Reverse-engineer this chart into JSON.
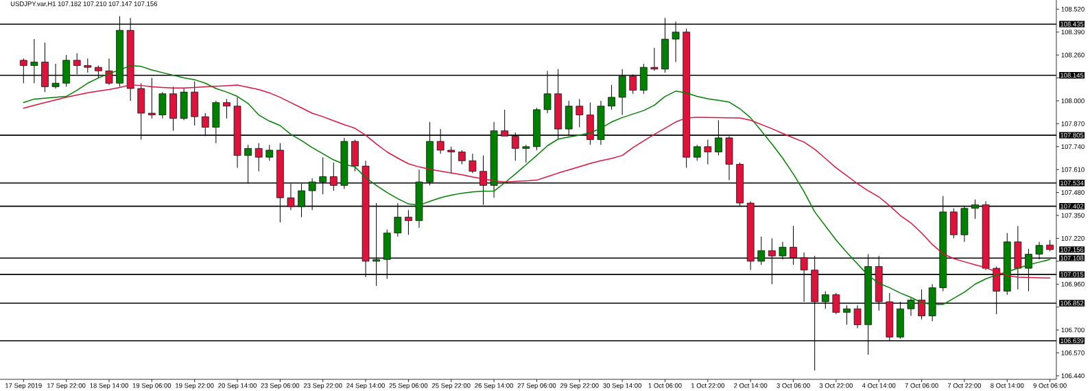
{
  "chart_data": {
    "type": "candlestick",
    "title": "USDJPY.var,H1 107.182 107.210 107.147 107.156",
    "categories": [
      "17 Sep 2019",
      null,
      null,
      null,
      "17 Sep 22:00",
      null,
      null,
      null,
      "18 Sep 14:00",
      null,
      null,
      null,
      "19 Sep 06:00",
      null,
      null,
      null,
      "19 Sep 22:00",
      null,
      null,
      null,
      "20 Sep 14:00",
      null,
      null,
      null,
      "23 Sep 06:00",
      null,
      null,
      null,
      "23 Sep 22:00",
      null,
      null,
      null,
      "24 Sep 14:00",
      null,
      null,
      null,
      "25 Sep 06:00",
      null,
      null,
      null,
      "25 Sep 22:00",
      null,
      null,
      null,
      "26 Sep 14:00",
      null,
      null,
      null,
      "27 Sep 06:00",
      null,
      null,
      null,
      "29 Sep 22:00",
      null,
      null,
      null,
      "30 Sep 14:00",
      null,
      null,
      null,
      "1 Oct 06:00",
      null,
      null,
      null,
      "1 Oct 22:00",
      null,
      null,
      null,
      "2 Oct 14:00",
      null,
      null,
      null,
      "3 Oct 06:00",
      null,
      null,
      null,
      "3 Oct 22:00",
      null,
      null,
      null,
      "4 Oct 14:00",
      null,
      null,
      null,
      "7 Oct 06:00",
      null,
      null,
      null,
      "7 Oct 22:00",
      null,
      null,
      null,
      "8 Oct 14:00",
      null,
      null,
      null,
      "9 Oct 06:00"
    ],
    "ohlc": [
      [
        108.23,
        108.24,
        108.1,
        108.2
      ],
      [
        108.2,
        108.35,
        108.1,
        108.22
      ],
      [
        108.22,
        108.33,
        108.05,
        108.08
      ],
      [
        108.08,
        108.21,
        108.07,
        108.1
      ],
      [
        108.1,
        108.26,
        108.08,
        108.23
      ],
      [
        108.23,
        108.27,
        108.15,
        108.2
      ],
      [
        108.2,
        108.24,
        108.16,
        108.19
      ],
      [
        108.19,
        108.2,
        108.13,
        108.17
      ],
      [
        108.17,
        108.24,
        108.09,
        108.1
      ],
      [
        108.1,
        108.48,
        108.08,
        108.4
      ],
      [
        108.4,
        108.47,
        108.0,
        108.07
      ],
      [
        108.07,
        108.1,
        107.78,
        107.93
      ],
      [
        107.93,
        108.13,
        107.9,
        107.92
      ],
      [
        107.92,
        108.05,
        107.9,
        108.04
      ],
      [
        108.04,
        108.08,
        107.83,
        107.9
      ],
      [
        107.9,
        108.07,
        107.89,
        108.05
      ],
      [
        108.05,
        108.11,
        107.86,
        107.91
      ],
      [
        107.91,
        107.93,
        107.8,
        107.85
      ],
      [
        107.85,
        108.0,
        107.76,
        107.99
      ],
      [
        107.99,
        108.01,
        107.9,
        107.97
      ],
      [
        107.97,
        108.02,
        107.62,
        107.69
      ],
      [
        107.69,
        107.75,
        107.53,
        107.73
      ],
      [
        107.73,
        107.76,
        107.6,
        107.68
      ],
      [
        107.68,
        107.75,
        107.66,
        107.72
      ],
      [
        107.72,
        107.76,
        107.31,
        107.45
      ],
      [
        107.45,
        107.53,
        107.38,
        107.4
      ],
      [
        107.4,
        107.53,
        107.34,
        107.49
      ],
      [
        107.49,
        107.56,
        107.38,
        107.54
      ],
      [
        107.54,
        107.68,
        107.47,
        107.57
      ],
      [
        107.57,
        107.65,
        107.49,
        107.52
      ],
      [
        107.52,
        107.79,
        107.5,
        107.77
      ],
      [
        107.77,
        107.78,
        107.6,
        107.63
      ],
      [
        107.63,
        107.66,
        107.0,
        107.09
      ],
      [
        107.09,
        107.42,
        106.95,
        107.1
      ],
      [
        107.1,
        107.27,
        106.99,
        107.25
      ],
      [
        107.25,
        107.42,
        107.23,
        107.34
      ],
      [
        107.34,
        107.38,
        107.24,
        107.32
      ],
      [
        107.32,
        107.61,
        107.28,
        107.54
      ],
      [
        107.54,
        107.88,
        107.52,
        107.77
      ],
      [
        107.77,
        107.84,
        107.7,
        107.72
      ],
      [
        107.72,
        107.74,
        107.59,
        107.71
      ],
      [
        107.71,
        107.72,
        107.64,
        107.66
      ],
      [
        107.66,
        107.7,
        107.59,
        107.6
      ],
      [
        107.6,
        107.69,
        107.41,
        107.52
      ],
      [
        107.52,
        107.88,
        107.45,
        107.83
      ],
      [
        107.83,
        107.95,
        107.8,
        107.8
      ],
      [
        107.8,
        107.82,
        107.66,
        107.73
      ],
      [
        107.73,
        107.75,
        107.65,
        107.74
      ],
      [
        107.74,
        107.96,
        107.72,
        107.95
      ],
      [
        107.95,
        108.17,
        107.93,
        108.04
      ],
      [
        108.04,
        108.18,
        107.78,
        107.84
      ],
      [
        107.84,
        108.0,
        107.8,
        107.97
      ],
      [
        107.97,
        108.01,
        107.85,
        107.92
      ],
      [
        107.92,
        107.99,
        107.75,
        107.78
      ],
      [
        107.78,
        108.0,
        107.75,
        107.97
      ],
      [
        107.97,
        108.09,
        107.95,
        108.02
      ],
      [
        108.02,
        108.18,
        107.92,
        108.14
      ],
      [
        108.14,
        108.15,
        108.04,
        108.06
      ],
      [
        108.06,
        108.21,
        108.04,
        108.19
      ],
      [
        108.19,
        108.3,
        108.17,
        108.18
      ],
      [
        108.18,
        108.47,
        108.16,
        108.35
      ],
      [
        108.35,
        108.45,
        108.22,
        108.39
      ],
      [
        108.39,
        108.41,
        107.62,
        107.68
      ],
      [
        107.68,
        107.75,
        107.66,
        107.74
      ],
      [
        107.74,
        107.78,
        107.64,
        107.71
      ],
      [
        107.71,
        107.89,
        107.69,
        107.79
      ],
      [
        107.79,
        107.8,
        107.55,
        107.64
      ],
      [
        107.64,
        107.65,
        107.4,
        107.42
      ],
      [
        107.42,
        107.43,
        107.04,
        107.09
      ],
      [
        107.09,
        107.23,
        107.07,
        107.15
      ],
      [
        107.15,
        107.22,
        106.96,
        107.12
      ],
      [
        107.12,
        107.2,
        107.1,
        107.17
      ],
      [
        107.17,
        107.29,
        107.07,
        107.11
      ],
      [
        107.11,
        107.14,
        106.86,
        107.04
      ],
      [
        107.04,
        107.12,
        106.47,
        106.86
      ],
      [
        106.86,
        106.92,
        106.82,
        106.9
      ],
      [
        106.9,
        106.91,
        106.79,
        106.8
      ],
      [
        106.8,
        106.84,
        106.73,
        106.82
      ],
      [
        106.82,
        106.84,
        106.71,
        106.73
      ],
      [
        106.73,
        107.13,
        106.56,
        107.06
      ],
      [
        107.06,
        107.12,
        106.81,
        106.86
      ],
      [
        106.86,
        106.91,
        106.64,
        106.66
      ],
      [
        106.66,
        106.86,
        106.65,
        106.82
      ],
      [
        106.82,
        106.88,
        106.78,
        106.87
      ],
      [
        106.87,
        106.93,
        106.76,
        106.78
      ],
      [
        106.78,
        106.96,
        106.75,
        106.94
      ],
      [
        106.94,
        107.46,
        106.92,
        107.37
      ],
      [
        107.37,
        107.39,
        107.22,
        107.24
      ],
      [
        107.24,
        107.4,
        107.2,
        107.39
      ],
      [
        107.39,
        107.44,
        107.33,
        107.41
      ],
      [
        107.41,
        107.43,
        107.04,
        107.05
      ],
      [
        107.05,
        107.06,
        106.79,
        106.92
      ],
      [
        106.92,
        107.25,
        106.9,
        107.2
      ],
      [
        107.2,
        107.29,
        106.93,
        107.05
      ],
      [
        107.05,
        107.16,
        106.92,
        107.13
      ],
      [
        107.13,
        107.2,
        107.1,
        107.18
      ],
      [
        107.182,
        107.21,
        107.147,
        107.156
      ]
    ],
    "colors": [
      "#dc143c",
      "#008000",
      "#dc143c",
      "#008000",
      "#008000",
      "#dc143c",
      "#dc143c",
      "#dc143c",
      "#dc143c",
      "#008000",
      "#dc143c",
      "#dc143c",
      "#dc143c",
      "#008000",
      "#dc143c",
      "#008000",
      "#dc143c",
      "#dc143c",
      "#008000",
      "#dc143c",
      "#dc143c",
      "#008000",
      "#dc143c",
      "#008000",
      "#dc143c",
      "#dc143c",
      "#008000",
      "#008000",
      "#008000",
      "#dc143c",
      "#008000",
      "#dc143c",
      "#dc143c",
      "#008000",
      "#008000",
      "#008000",
      "#dc143c",
      "#008000",
      "#008000",
      "#dc143c",
      "#dc143c",
      "#dc143c",
      "#dc143c",
      "#dc143c",
      "#008000",
      "#dc143c",
      "#dc143c",
      "#008000",
      "#008000",
      "#008000",
      "#dc143c",
      "#008000",
      "#dc143c",
      "#dc143c",
      "#008000",
      "#008000",
      "#008000",
      "#dc143c",
      "#008000",
      "#dc143c",
      "#008000",
      "#008000",
      "#dc143c",
      "#008000",
      "#dc143c",
      "#008000",
      "#dc143c",
      "#dc143c",
      "#dc143c",
      "#008000",
      "#dc143c",
      "#008000",
      "#dc143c",
      "#dc143c",
      "#dc143c",
      "#008000",
      "#dc143c",
      "#008000",
      "#dc143c",
      "#008000",
      "#dc143c",
      "#dc143c",
      "#008000",
      "#008000",
      "#dc143c",
      "#008000",
      "#008000",
      "#dc143c",
      "#008000",
      "#008000",
      "#dc143c",
      "#dc143c",
      "#008000",
      "#dc143c",
      "#008000",
      "#008000",
      "#dc143c"
    ],
    "series": [
      {
        "type": "line",
        "color": "#008000",
        "values": [
          107.99,
          108.01,
          108.015,
          108.02,
          108.025,
          108.06,
          108.1,
          108.13,
          108.155,
          108.175,
          108.2,
          108.195,
          108.175,
          108.16,
          108.145,
          108.13,
          108.12,
          108.1,
          108.07,
          108.05,
          108.025,
          107.985,
          107.92,
          107.885,
          107.86,
          107.81,
          107.775,
          107.735,
          107.7,
          107.665,
          107.64,
          107.625,
          107.565,
          107.52,
          107.48,
          107.445,
          107.415,
          107.408,
          107.43,
          107.45,
          107.465,
          107.476,
          107.483,
          107.487,
          107.488,
          107.535,
          107.585,
          107.638,
          107.69,
          107.745,
          107.783,
          107.795,
          107.805,
          107.818,
          107.845,
          107.88,
          107.905,
          107.925,
          107.945,
          107.975,
          108.025,
          108.055,
          108.045,
          108.025,
          108.012,
          108.003,
          107.993,
          107.955,
          107.904,
          107.83,
          107.755,
          107.675,
          107.585,
          107.485,
          107.37,
          107.29,
          107.21,
          107.14,
          107.075,
          107.01,
          106.965,
          106.94,
          106.91,
          106.885,
          106.855,
          106.845,
          106.845,
          106.88,
          106.915,
          106.96,
          106.99,
          107.012,
          107.03,
          107.05,
          107.07,
          107.085,
          107.1
        ]
      },
      {
        "type": "line",
        "color": "#dc143c",
        "values": [
          107.958,
          107.975,
          107.99,
          108.005,
          108.02,
          108.033,
          108.046,
          108.055,
          108.064,
          108.076,
          108.09,
          108.087,
          108.08,
          108.076,
          108.073,
          108.073,
          108.076,
          108.08,
          108.083,
          108.086,
          108.089,
          108.077,
          108.064,
          108.045,
          108.02,
          107.99,
          107.96,
          107.93,
          107.91,
          107.887,
          107.865,
          107.844,
          107.805,
          107.755,
          107.71,
          107.675,
          107.643,
          107.625,
          107.612,
          107.601,
          107.591,
          107.581,
          107.568,
          107.557,
          107.547,
          107.54,
          107.543,
          107.546,
          107.55,
          107.57,
          107.59,
          107.608,
          107.626,
          107.645,
          107.66,
          107.673,
          107.69,
          107.735,
          107.773,
          107.81,
          107.845,
          107.88,
          107.903,
          107.907,
          107.906,
          107.905,
          107.904,
          107.903,
          107.89,
          107.866,
          107.842,
          107.815,
          107.79,
          107.766,
          107.725,
          107.673,
          107.62,
          107.575,
          107.53,
          107.49,
          107.455,
          107.405,
          107.35,
          107.307,
          107.25,
          107.185,
          107.132,
          107.105,
          107.087,
          107.07,
          107.053,
          107.03,
          107.008,
          107.0,
          106.998,
          106.996,
          106.995
        ]
      }
    ],
    "ylim": [
      106.42,
      108.572
    ],
    "yticks": [
      {
        "value": 106.44,
        "label": "106.440"
      },
      {
        "value": 106.57,
        "label": "106.570"
      },
      {
        "value": 106.7,
        "label": "106.700"
      },
      {
        "value": 106.83,
        "label": null
      },
      {
        "value": 106.96,
        "label": "106.960"
      },
      {
        "value": 107.09,
        "label": null
      },
      {
        "value": 107.22,
        "label": "107.220"
      },
      {
        "value": 107.35,
        "label": "107.350"
      },
      {
        "value": 107.48,
        "label": "107.480"
      },
      {
        "value": 107.61,
        "label": "107.610"
      },
      {
        "value": 107.74,
        "label": "107.740"
      },
      {
        "value": 107.87,
        "label": "107.870"
      },
      {
        "value": 108.0,
        "label": "108.000"
      },
      {
        "value": 108.13,
        "label": null
      },
      {
        "value": 108.26,
        "label": "108.260"
      },
      {
        "value": 108.39,
        "label": "108.390"
      },
      {
        "value": 108.52,
        "label": "108.520"
      }
    ],
    "ref_lines": [
      {
        "axis": "y",
        "value": 108.435,
        "label": "108.435",
        "color": "#000000"
      },
      {
        "axis": "y",
        "value": 108.145,
        "label": "108.145",
        "color": "#000000"
      },
      {
        "axis": "y",
        "value": 107.805,
        "label": "107.805",
        "color": "#000000"
      },
      {
        "axis": "y",
        "value": 107.534,
        "label": "107.534",
        "color": "#000000"
      },
      {
        "axis": "y",
        "value": 107.402,
        "label": "107.402",
        "color": "#000000"
      },
      {
        "axis": "y",
        "value": 107.108,
        "label": "107.108",
        "color": "#000000"
      },
      {
        "axis": "y",
        "value": 107.015,
        "label": "107.015",
        "color": "#000000"
      },
      {
        "axis": "y",
        "value": 106.852,
        "label": "106.852",
        "color": "#000000"
      },
      {
        "axis": "y",
        "value": 106.639,
        "label": "106.639",
        "color": "#000000"
      }
    ],
    "annotations": [
      "107.156"
    ]
  }
}
